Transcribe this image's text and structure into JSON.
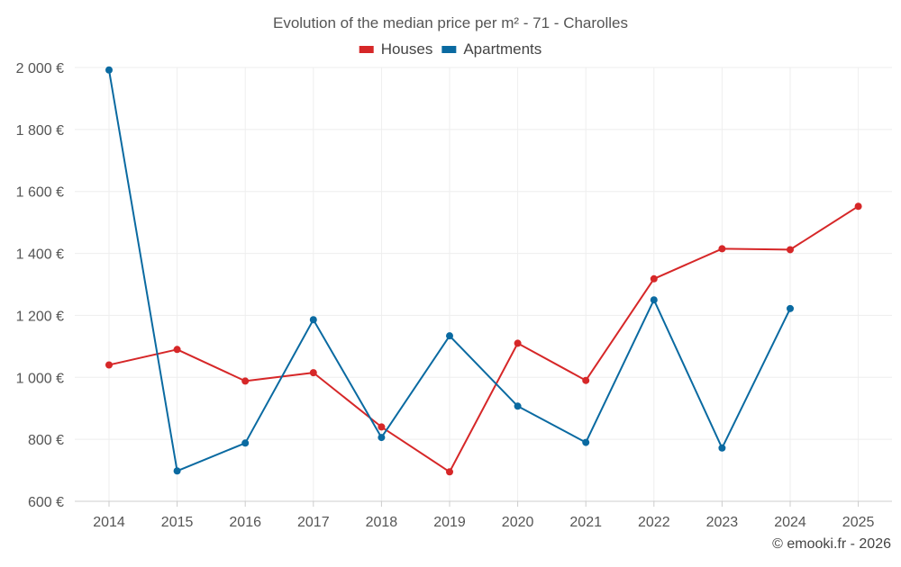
{
  "chart_data": {
    "type": "line",
    "title": "Evolution of the median price per m² - 71 - Charolles",
    "categories": [
      "2014",
      "2015",
      "2016",
      "2017",
      "2018",
      "2019",
      "2020",
      "2021",
      "2022",
      "2023",
      "2024",
      "2025"
    ],
    "series": [
      {
        "name": "Houses",
        "color": "#d62728",
        "values": [
          1040,
          1090,
          988,
          1015,
          840,
          695,
          1110,
          990,
          1318,
          1415,
          1412,
          1552
        ]
      },
      {
        "name": "Apartments",
        "color": "#0a6aa1",
        "values": [
          1992,
          698,
          788,
          1186,
          806,
          1134,
          907,
          790,
          1250,
          772,
          1222,
          null
        ]
      }
    ],
    "ylim": [
      600,
      2000
    ],
    "yticks": [
      600,
      800,
      1000,
      1200,
      1400,
      1600,
      1800,
      2000
    ],
    "ytick_labels": [
      "600 €",
      "800 €",
      "1 000 €",
      "1 200 €",
      "1 400 €",
      "1 600 €",
      "1 800 €",
      "2 000 €"
    ],
    "xlabel": "",
    "ylabel": "",
    "grid": true,
    "legend_position": "top-center"
  },
  "credit": "© emooki.fr - 2026"
}
